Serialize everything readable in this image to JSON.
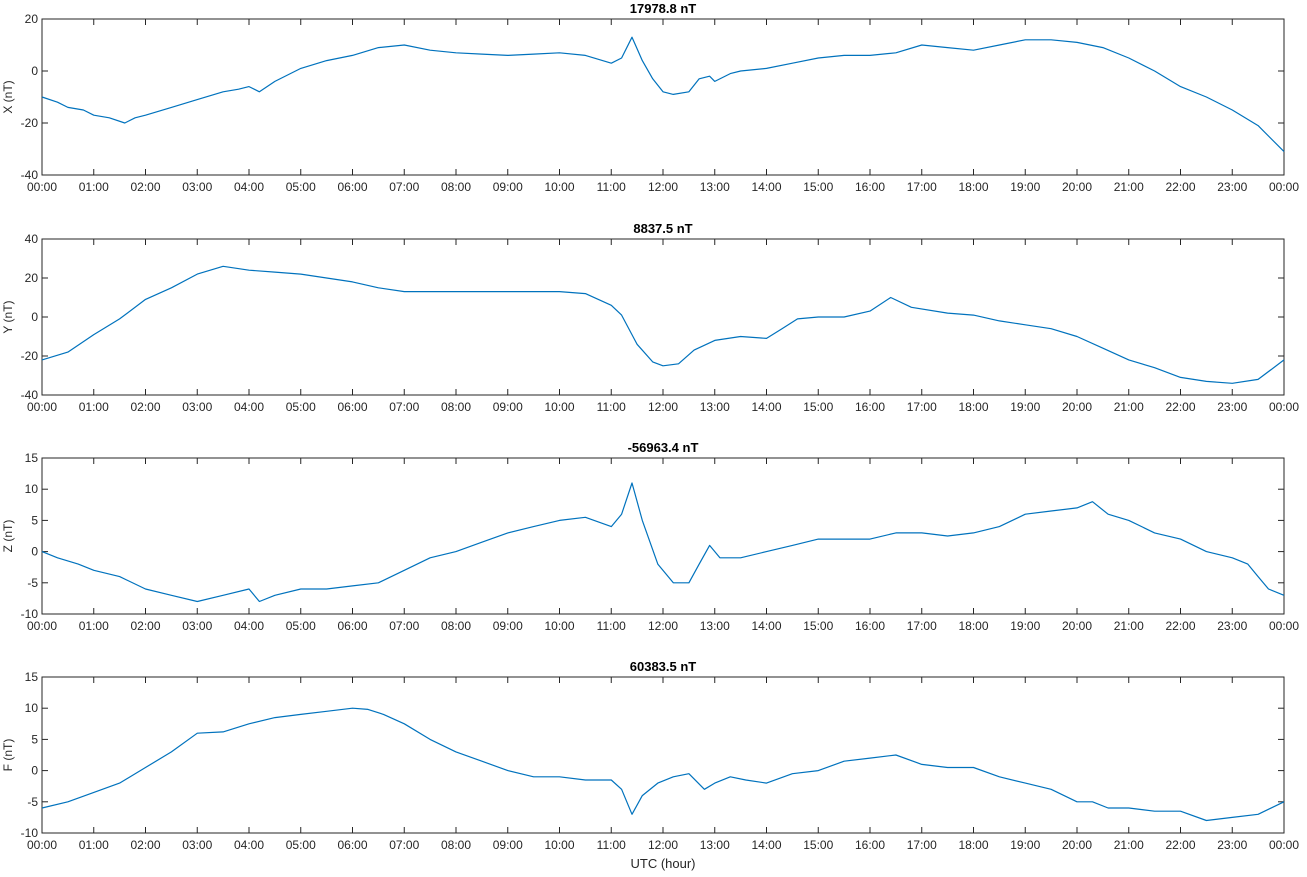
{
  "accent_color": "#0072bd",
  "xlabel": "UTC (hour)",
  "chart_data": [
    {
      "type": "line",
      "title": "17978.8 nT",
      "ylabel": "X (nT)",
      "xlim": [
        0,
        24
      ],
      "ylim": [
        -40,
        20
      ],
      "yticks": [
        -40,
        -20,
        0,
        20
      ],
      "xtick_labels": [
        "00:00",
        "01:00",
        "02:00",
        "03:00",
        "04:00",
        "05:00",
        "06:00",
        "07:00",
        "08:00",
        "09:00",
        "10:00",
        "11:00",
        "12:00",
        "13:00",
        "14:00",
        "15:00",
        "16:00",
        "17:00",
        "18:00",
        "19:00",
        "20:00",
        "21:00",
        "22:00",
        "23:00",
        "00:00"
      ],
      "series": [
        {
          "x": [
            0,
            0.3,
            0.5,
            0.8,
            1,
            1.3,
            1.6,
            1.8,
            2,
            2.5,
            3,
            3.5,
            3.8,
            4,
            4.2,
            4.5,
            5,
            5.5,
            6,
            6.5,
            7,
            7.5,
            8,
            8.5,
            9,
            9.5,
            10,
            10.5,
            11,
            11.2,
            11.4,
            11.6,
            11.8,
            12,
            12.2,
            12.5,
            12.7,
            12.9,
            13,
            13.3,
            13.5,
            14,
            14.5,
            15,
            15.5,
            16,
            16.5,
            17,
            17.5,
            18,
            18.5,
            19,
            19.5,
            20,
            20.5,
            21,
            21.5,
            22,
            22.5,
            23,
            23.5,
            24
          ],
          "values": [
            -10,
            -12,
            -14,
            -15,
            -17,
            -18,
            -20,
            -18,
            -17,
            -14,
            -11,
            -8,
            -7,
            -6,
            -8,
            -4,
            1,
            4,
            6,
            9,
            10,
            8,
            7,
            6.5,
            6,
            6.5,
            7,
            6,
            3,
            5,
            13,
            4,
            -3,
            -8,
            -9,
            -8,
            -3,
            -2,
            -4,
            -1,
            0,
            1,
            3,
            5,
            6,
            6,
            7,
            10,
            9,
            8,
            10,
            12,
            12,
            11,
            9,
            5,
            0,
            -6,
            -10,
            -15,
            -21,
            -31
          ]
        }
      ]
    },
    {
      "type": "line",
      "title": "8837.5 nT",
      "ylabel": "Y (nT)",
      "xlim": [
        0,
        24
      ],
      "ylim": [
        -40,
        40
      ],
      "yticks": [
        -40,
        -20,
        0,
        20,
        40
      ],
      "xtick_labels": [
        "00:00",
        "01:00",
        "02:00",
        "03:00",
        "04:00",
        "05:00",
        "06:00",
        "07:00",
        "08:00",
        "09:00",
        "10:00",
        "11:00",
        "12:00",
        "13:00",
        "14:00",
        "15:00",
        "16:00",
        "17:00",
        "18:00",
        "19:00",
        "20:00",
        "21:00",
        "22:00",
        "23:00",
        "00:00"
      ],
      "series": [
        {
          "x": [
            0,
            0.5,
            1,
            1.5,
            2,
            2.5,
            3,
            3.5,
            4,
            4.5,
            5,
            5.5,
            6,
            6.5,
            7,
            7.5,
            8,
            8.5,
            9,
            9.5,
            10,
            10.5,
            11,
            11.2,
            11.5,
            11.8,
            12,
            12.3,
            12.6,
            13,
            13.5,
            14,
            14.3,
            14.6,
            15,
            15.5,
            16,
            16.4,
            16.8,
            17.5,
            18,
            18.5,
            19,
            19.5,
            20,
            20.5,
            21,
            21.5,
            22,
            22.5,
            23,
            23.5,
            24
          ],
          "values": [
            -22,
            -18,
            -9,
            -1,
            9,
            15,
            22,
            26,
            24,
            23,
            22,
            20,
            18,
            15,
            13,
            13,
            13,
            13,
            13,
            13,
            13,
            12,
            6,
            1,
            -14,
            -23,
            -25,
            -24,
            -17,
            -12,
            -10,
            -11,
            -6,
            -1,
            0,
            0,
            3,
            10,
            5,
            2,
            1,
            -2,
            -4,
            -6,
            -10,
            -16,
            -22,
            -26,
            -31,
            -33,
            -34,
            -32,
            -22
          ]
        }
      ]
    },
    {
      "type": "line",
      "title": "-56963.4 nT",
      "ylabel": "Z (nT)",
      "xlim": [
        0,
        24
      ],
      "ylim": [
        -10,
        15
      ],
      "yticks": [
        -10,
        -5,
        0,
        5,
        10,
        15
      ],
      "xtick_labels": [
        "00:00",
        "01:00",
        "02:00",
        "03:00",
        "04:00",
        "05:00",
        "06:00",
        "07:00",
        "08:00",
        "09:00",
        "10:00",
        "11:00",
        "12:00",
        "13:00",
        "14:00",
        "15:00",
        "16:00",
        "17:00",
        "18:00",
        "19:00",
        "20:00",
        "21:00",
        "22:00",
        "23:00",
        "00:00"
      ],
      "series": [
        {
          "x": [
            0,
            0.3,
            0.7,
            1,
            1.5,
            2,
            2.5,
            3,
            3.5,
            4,
            4.2,
            4.5,
            5,
            5.5,
            6,
            6.5,
            7,
            7.5,
            8,
            8.5,
            9,
            9.5,
            10,
            10.5,
            11,
            11.2,
            11.4,
            11.6,
            11.9,
            12.2,
            12.5,
            12.7,
            12.9,
            13.1,
            13.5,
            14,
            14.5,
            15,
            15.5,
            16,
            16.5,
            17,
            17.5,
            18,
            18.5,
            19,
            19.5,
            20,
            20.3,
            20.6,
            21,
            21.5,
            22,
            22.5,
            23,
            23.3,
            23.5,
            23.7,
            24
          ],
          "values": [
            0,
            -1,
            -2,
            -3,
            -4,
            -6,
            -7,
            -8,
            -7,
            -6,
            -8,
            -7,
            -6,
            -6,
            -5.5,
            -5,
            -3,
            -1,
            0,
            1.5,
            3,
            4,
            5,
            5.5,
            4,
            6,
            11,
            5,
            -2,
            -5,
            -5,
            -2,
            1,
            -1,
            -1,
            0,
            1,
            2,
            2,
            2,
            3,
            3,
            2.5,
            3,
            4,
            6,
            6.5,
            7,
            8,
            6,
            5,
            3,
            2,
            0,
            -1,
            -2,
            -4,
            -6,
            -7
          ]
        }
      ]
    },
    {
      "type": "line",
      "title": "60383.5 nT",
      "ylabel": "F (nT)",
      "xlim": [
        0,
        24
      ],
      "ylim": [
        -10,
        15
      ],
      "yticks": [
        -10,
        -5,
        0,
        5,
        10,
        15
      ],
      "xtick_labels": [
        "00:00",
        "01:00",
        "02:00",
        "03:00",
        "04:00",
        "05:00",
        "06:00",
        "07:00",
        "08:00",
        "09:00",
        "10:00",
        "11:00",
        "12:00",
        "13:00",
        "14:00",
        "15:00",
        "16:00",
        "17:00",
        "18:00",
        "19:00",
        "20:00",
        "21:00",
        "22:00",
        "23:00",
        "00:00"
      ],
      "series": [
        {
          "x": [
            0,
            0.5,
            1,
            1.5,
            2,
            2.5,
            3,
            3.5,
            4,
            4.5,
            5,
            5.5,
            6,
            6.3,
            6.6,
            7,
            7.5,
            8,
            8.5,
            9,
            9.5,
            10,
            10.5,
            11,
            11.2,
            11.4,
            11.6,
            11.9,
            12.2,
            12.5,
            12.8,
            13,
            13.3,
            13.6,
            14,
            14.5,
            15,
            15.5,
            16,
            16.5,
            17,
            17.5,
            18,
            18.5,
            19,
            19.5,
            20,
            20.3,
            20.6,
            21,
            21.5,
            22,
            22.5,
            23,
            23.5,
            24
          ],
          "values": [
            -6,
            -5,
            -3.5,
            -2,
            0.5,
            3,
            6,
            6.2,
            7.5,
            8.5,
            9,
            9.5,
            10,
            9.8,
            9,
            7.5,
            5,
            3,
            1.5,
            0,
            -1,
            -1,
            -1.5,
            -1.5,
            -3,
            -7,
            -4,
            -2,
            -1,
            -0.5,
            -3,
            -2,
            -1,
            -1.5,
            -2,
            -0.5,
            0,
            1.5,
            2,
            2.5,
            1,
            0.5,
            0.5,
            -1,
            -2,
            -3,
            -5,
            -5,
            -6,
            -6,
            -6.5,
            -6.5,
            -8,
            -7.5,
            -7,
            -5
          ]
        }
      ]
    }
  ]
}
